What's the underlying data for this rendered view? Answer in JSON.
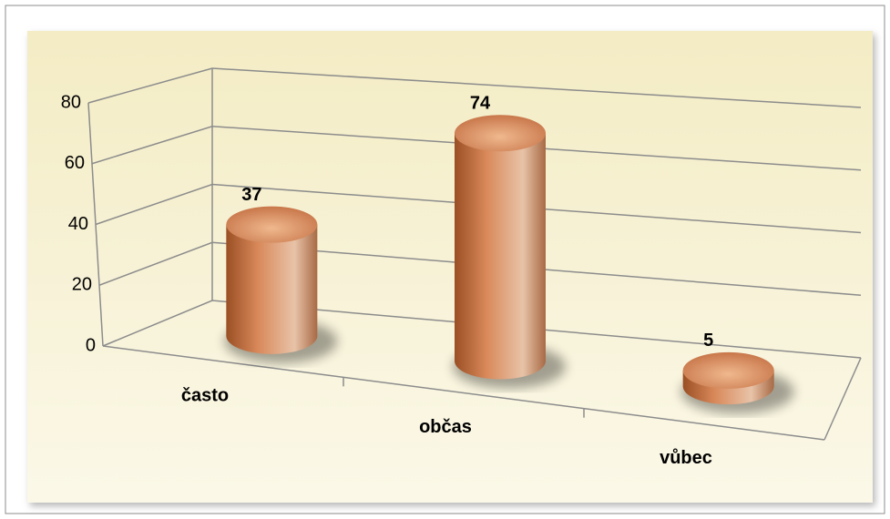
{
  "chart_data": {
    "type": "bar3d",
    "categories": [
      "často",
      "občas",
      "vůbec"
    ],
    "values": [
      37,
      74,
      5
    ],
    "color": "#c87a4c",
    "ylim": [
      0,
      80
    ],
    "yticks": [
      0,
      20,
      40,
      60,
      80
    ],
    "grid": true
  }
}
